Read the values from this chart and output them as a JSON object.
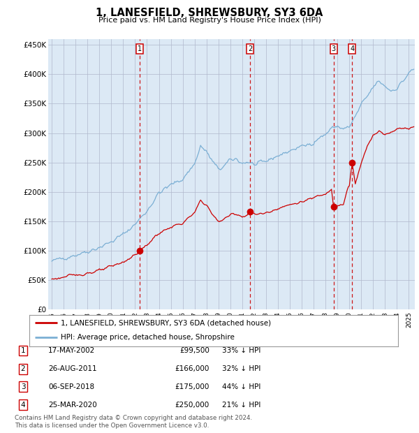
{
  "title": "1, LANESFIELD, SHREWSBURY, SY3 6DA",
  "subtitle": "Price paid vs. HM Land Registry's House Price Index (HPI)",
  "legend_line1": "1, LANESFIELD, SHREWSBURY, SY3 6DA (detached house)",
  "legend_line2": "HPI: Average price, detached house, Shropshire",
  "footer_line1": "Contains HM Land Registry data © Crown copyright and database right 2024.",
  "footer_line2": "This data is licensed under the Open Government Licence v3.0.",
  "hpi_color": "#7bafd4",
  "price_color": "#cc0000",
  "background_color": "#dce9f5",
  "ylim": [
    0,
    460000
  ],
  "yticks": [
    0,
    50000,
    100000,
    150000,
    200000,
    250000,
    300000,
    350000,
    400000,
    450000
  ],
  "ytick_labels": [
    "£0",
    "£50K",
    "£100K",
    "£150K",
    "£200K",
    "£250K",
    "£300K",
    "£350K",
    "£400K",
    "£450K"
  ],
  "sales": [
    {
      "num": 1,
      "date_label": "17-MAY-2002",
      "price": 99500,
      "price_str": "£99,500",
      "pct": "33%",
      "x_year": 2002.37
    },
    {
      "num": 2,
      "date_label": "26-AUG-2011",
      "price": 166000,
      "price_str": "£166,000",
      "pct": "32%",
      "x_year": 2011.65
    },
    {
      "num": 3,
      "date_label": "06-SEP-2018",
      "price": 175000,
      "price_str": "£175,000",
      "pct": "44%",
      "x_year": 2018.68
    },
    {
      "num": 4,
      "date_label": "25-MAR-2020",
      "price": 250000,
      "price_str": "£250,000",
      "pct": "21%",
      "x_year": 2020.23
    }
  ],
  "xlim_start": 1994.7,
  "xlim_end": 2025.5,
  "hpi_anchors": [
    [
      1995.0,
      82000
    ],
    [
      1996.0,
      88000
    ],
    [
      1997.0,
      93000
    ],
    [
      1998.0,
      99000
    ],
    [
      1999.0,
      106000
    ],
    [
      2000.0,
      115000
    ],
    [
      2001.0,
      128000
    ],
    [
      2002.0,
      145000
    ],
    [
      2003.0,
      168000
    ],
    [
      2004.0,
      198000
    ],
    [
      2005.0,
      212000
    ],
    [
      2006.0,
      222000
    ],
    [
      2007.0,
      248000
    ],
    [
      2007.5,
      278000
    ],
    [
      2008.0,
      268000
    ],
    [
      2008.5,
      252000
    ],
    [
      2009.0,
      238000
    ],
    [
      2009.5,
      244000
    ],
    [
      2010.0,
      254000
    ],
    [
      2010.5,
      256000
    ],
    [
      2011.0,
      249000
    ],
    [
      2011.5,
      251000
    ],
    [
      2012.0,
      246000
    ],
    [
      2012.5,
      248000
    ],
    [
      2013.0,
      252000
    ],
    [
      2013.5,
      257000
    ],
    [
      2014.0,
      262000
    ],
    [
      2014.5,
      265000
    ],
    [
      2015.0,
      270000
    ],
    [
      2015.5,
      274000
    ],
    [
      2016.0,
      277000
    ],
    [
      2016.5,
      280000
    ],
    [
      2017.0,
      285000
    ],
    [
      2017.5,
      292000
    ],
    [
      2018.0,
      298000
    ],
    [
      2018.5,
      308000
    ],
    [
      2019.0,
      312000
    ],
    [
      2019.5,
      307000
    ],
    [
      2020.0,
      310000
    ],
    [
      2020.5,
      328000
    ],
    [
      2021.0,
      348000
    ],
    [
      2021.5,
      362000
    ],
    [
      2022.0,
      378000
    ],
    [
      2022.5,
      388000
    ],
    [
      2023.0,
      380000
    ],
    [
      2023.5,
      372000
    ],
    [
      2024.0,
      377000
    ],
    [
      2024.5,
      388000
    ],
    [
      2025.0,
      402000
    ],
    [
      2025.4,
      408000
    ]
  ],
  "price_anchors": [
    [
      1995.0,
      52000
    ],
    [
      1996.0,
      55000
    ],
    [
      1997.0,
      59000
    ],
    [
      1998.0,
      62000
    ],
    [
      1999.0,
      66000
    ],
    [
      2000.0,
      73000
    ],
    [
      2001.0,
      81000
    ],
    [
      2002.0,
      93000
    ],
    [
      2002.37,
      99500
    ],
    [
      2003.0,
      110000
    ],
    [
      2004.0,
      130000
    ],
    [
      2005.0,
      140000
    ],
    [
      2006.0,
      147000
    ],
    [
      2007.0,
      164000
    ],
    [
      2007.5,
      186000
    ],
    [
      2008.0,
      178000
    ],
    [
      2008.5,
      161000
    ],
    [
      2009.0,
      150000
    ],
    [
      2009.5,
      154000
    ],
    [
      2010.0,
      161000
    ],
    [
      2010.5,
      164000
    ],
    [
      2011.0,
      157000
    ],
    [
      2011.65,
      166000
    ],
    [
      2012.0,
      162000
    ],
    [
      2012.5,
      163000
    ],
    [
      2013.0,
      164000
    ],
    [
      2013.5,
      168000
    ],
    [
      2014.0,
      173000
    ],
    [
      2014.5,
      175000
    ],
    [
      2015.0,
      178000
    ],
    [
      2015.5,
      181000
    ],
    [
      2016.0,
      183000
    ],
    [
      2016.5,
      186000
    ],
    [
      2017.0,
      190000
    ],
    [
      2017.5,
      194000
    ],
    [
      2018.0,
      197000
    ],
    [
      2018.5,
      207000
    ],
    [
      2018.68,
      175000
    ],
    [
      2019.0,
      177000
    ],
    [
      2019.5,
      179000
    ],
    [
      2019.9,
      207000
    ],
    [
      2020.0,
      210000
    ],
    [
      2020.23,
      250000
    ],
    [
      2020.5,
      213000
    ],
    [
      2021.0,
      248000
    ],
    [
      2021.5,
      278000
    ],
    [
      2022.0,
      298000
    ],
    [
      2022.5,
      303000
    ],
    [
      2023.0,
      297000
    ],
    [
      2023.5,
      302000
    ],
    [
      2024.0,
      307000
    ],
    [
      2024.5,
      310000
    ],
    [
      2025.0,
      308000
    ],
    [
      2025.4,
      311000
    ]
  ]
}
